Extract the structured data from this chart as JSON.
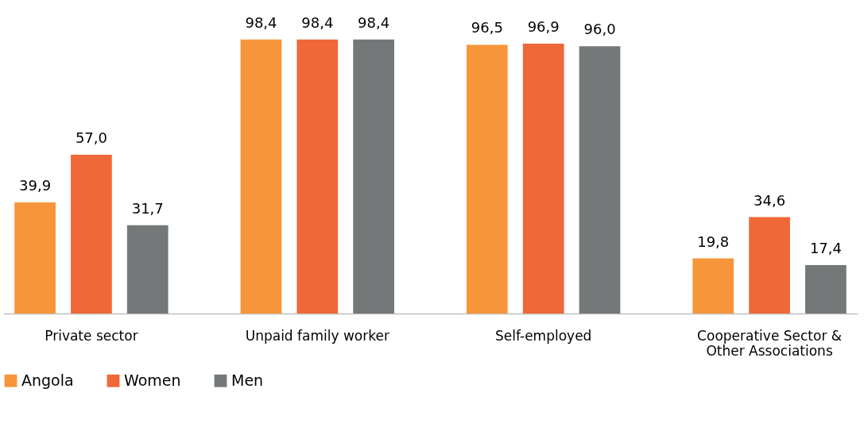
{
  "chart_data": {
    "type": "bar",
    "categories": [
      "Private sector",
      "Unpaid family worker",
      "Self-employed",
      "Cooperative Sector & Other Associations"
    ],
    "series": [
      {
        "name": "Angola",
        "color": "#f7953a",
        "values": [
          39.9,
          98.4,
          96.5,
          19.8
        ],
        "value_labels": [
          "39,9",
          "98,4",
          "96,5",
          "19,8"
        ]
      },
      {
        "name": "Women",
        "color": "#f06838",
        "values": [
          57.0,
          98.4,
          96.9,
          34.6
        ],
        "value_labels": [
          "57,0",
          "98,4",
          "96,9",
          "34,6"
        ]
      },
      {
        "name": "Men",
        "color": "#757878",
        "values": [
          31.7,
          98.4,
          96.0,
          17.4
        ],
        "value_labels": [
          "31,7",
          "98,4",
          "96,0",
          "17,4"
        ]
      }
    ],
    "legend": "bottom",
    "tick_labels": "x"
  }
}
